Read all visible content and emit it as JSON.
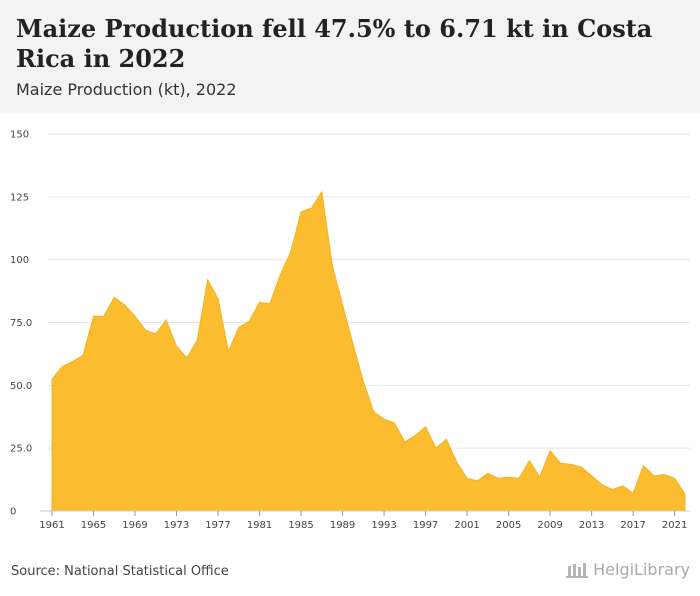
{
  "header": {
    "title": "Maize Production fell 47.5% to 6.71 kt in Costa Rica in 2022",
    "subtitle": "Maize Production (kt), 2022"
  },
  "footer": {
    "source": "Source: National Statistical Office",
    "logo_text": "HelgiLibrary"
  },
  "colors": {
    "area": "#fbbc30",
    "grid": "#e6e6e6",
    "header_bg": "#f3f3f3"
  },
  "chart_data": {
    "type": "area",
    "ylim": [
      0,
      150
    ],
    "xlim": [
      1961,
      2022
    ],
    "y_ticks": [
      "0",
      "25.0",
      "50.0",
      "75.0",
      "100",
      "125",
      "150"
    ],
    "x_ticks": [
      "1961",
      "1965",
      "1969",
      "1973",
      "1977",
      "1981",
      "1985",
      "1989",
      "1993",
      "1997",
      "2001",
      "2005",
      "2009",
      "2013",
      "2017",
      "2021"
    ],
    "grid": true,
    "x": [
      1961,
      1962,
      1963,
      1964,
      1965,
      1966,
      1967,
      1968,
      1969,
      1970,
      1971,
      1972,
      1973,
      1974,
      1975,
      1976,
      1977,
      1978,
      1979,
      1980,
      1981,
      1982,
      1983,
      1984,
      1985,
      1986,
      1987,
      1988,
      1989,
      1990,
      1991,
      1992,
      1993,
      1994,
      1995,
      1996,
      1997,
      1998,
      1999,
      2000,
      2001,
      2002,
      2003,
      2004,
      2005,
      2006,
      2007,
      2008,
      2009,
      2010,
      2011,
      2012,
      2013,
      2014,
      2015,
      2016,
      2017,
      2018,
      2019,
      2020,
      2021,
      2022
    ],
    "values": [
      52.5,
      57.5,
      59.5,
      62,
      77.5,
      77.5,
      85,
      82,
      77.5,
      72,
      70.5,
      76,
      65.5,
      61,
      68,
      92,
      84.5,
      63.5,
      73,
      75.5,
      83,
      82.5,
      94,
      103,
      119,
      120.5,
      127,
      98,
      82,
      66.5,
      51.5,
      39.5,
      36.5,
      35,
      27.5,
      30,
      33.5,
      25,
      28.5,
      19.5,
      13,
      12,
      15,
      13,
      13.5,
      13,
      20,
      13.5,
      24,
      19,
      18.5,
      17.5,
      14,
      10.5,
      8.5,
      10,
      7,
      18,
      14,
      14.5,
      13,
      6.71
    ]
  }
}
